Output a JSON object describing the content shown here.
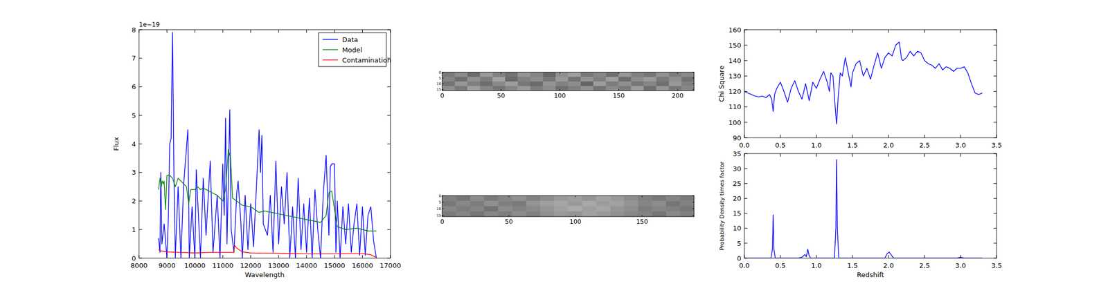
{
  "chart_data": [
    {
      "type": "line",
      "xlabel": "Wavelength",
      "ylabel": "Flux",
      "annotations": [
        "1e−19"
      ],
      "xlim": [
        8000,
        17000
      ],
      "xticks": [
        8000,
        9000,
        10000,
        11000,
        12000,
        13000,
        14000,
        15000,
        16000,
        17000
      ],
      "ylim": [
        0,
        8
      ],
      "yticks": [
        0,
        1,
        2,
        3,
        4,
        5,
        6,
        7,
        8
      ],
      "legend": "upper right",
      "series": [
        {
          "name": "Data",
          "color": "#0000ff",
          "x": [
            8700,
            8750,
            8780,
            8820,
            8900,
            9000,
            9050,
            9100,
            9150,
            9200,
            9250,
            9300,
            9400,
            9500,
            9600,
            9750,
            9800,
            9900,
            10000,
            10050,
            10200,
            10300,
            10400,
            10550,
            10650,
            10800,
            10900,
            11000,
            11050,
            11100,
            11150,
            11250,
            11300,
            11400,
            11500,
            11550,
            11650,
            11700,
            11800,
            11900,
            12000,
            12100,
            12200,
            12300,
            12350,
            12400,
            12450,
            12600,
            12700,
            12800,
            12900,
            13000,
            13100,
            13200,
            13300,
            13400,
            13500,
            13600,
            13700,
            13800,
            13900,
            14000,
            14100,
            14200,
            14300,
            14400,
            14500,
            14600,
            14700,
            14800,
            14850,
            14900,
            15000,
            15050,
            15100,
            15200,
            15300,
            15400,
            15500,
            15600,
            15700,
            15800,
            15900,
            16000,
            16100,
            16200,
            16300,
            16400,
            16500
          ],
          "values": [
            0.7,
            0.2,
            3.0,
            0.5,
            1.2,
            0,
            1.4,
            4.0,
            4.2,
            7.9,
            3.0,
            0,
            2.5,
            0,
            2.6,
            4.5,
            0,
            1.8,
            0,
            3.1,
            0,
            2.8,
            0.8,
            3.4,
            0.2,
            2.2,
            0,
            3.3,
            1.5,
            4.9,
            0.5,
            5.2,
            1.0,
            0.2,
            2.3,
            2.7,
            1.2,
            0,
            2.2,
            0.3,
            1.9,
            0.4,
            2.4,
            4.5,
            3.0,
            4.3,
            1.2,
            0.8,
            2.2,
            0.2,
            3.4,
            0.5,
            2.5,
            1.2,
            3.0,
            0,
            1.8,
            0,
            2.8,
            0.3,
            1.9,
            0.2,
            2.1,
            0,
            2.4,
            1.0,
            0,
            2.3,
            3.6,
            0.8,
            3.2,
            3.3,
            3.3,
            0.2,
            2.0,
            0,
            1.8,
            0.5,
            1.9,
            0.2,
            1.2,
            1.9,
            0.1,
            1.8,
            0.1,
            1.5,
            1.8,
            0.6,
            0
          ]
        },
        {
          "name": "Model",
          "color": "#008000",
          "x": [
            8700,
            8750,
            8800,
            8830,
            8870,
            8900,
            8950,
            9000,
            9100,
            9200,
            9300,
            9400,
            9500,
            9600,
            9700,
            9780,
            9850,
            10000,
            10100,
            10200,
            10300,
            10400,
            10500,
            10600,
            10700,
            10800,
            10900,
            11000,
            11100,
            11200,
            11280,
            11350,
            11500,
            11700,
            12000,
            12300,
            12500,
            13000,
            13500,
            14000,
            14500,
            14700,
            14800,
            14900,
            15050,
            15100,
            15400,
            15800,
            16200,
            16500
          ],
          "values": [
            2.4,
            2.8,
            2.5,
            2.7,
            2.6,
            2.7,
            1.7,
            2.9,
            2.9,
            2.8,
            2.5,
            2.8,
            2.7,
            2.6,
            2.5,
            1.9,
            2.4,
            2.4,
            2.5,
            2.4,
            2.45,
            2.4,
            2.35,
            2.3,
            2.25,
            2.2,
            2.1,
            2.0,
            2.4,
            3.8,
            3.5,
            2.1,
            2.0,
            1.85,
            1.8,
            1.6,
            1.65,
            1.55,
            1.45,
            1.35,
            1.25,
            1.5,
            2.3,
            2.35,
            1.4,
            1.1,
            1.0,
            1.05,
            0.95,
            0.95
          ]
        },
        {
          "name": "Contamination",
          "color": "#ff0000",
          "x": [
            8700,
            8800,
            9000,
            9500,
            10000,
            10500,
            11000,
            11400,
            11420,
            11500,
            11700,
            12000,
            13000,
            14000,
            15000,
            15500,
            16000,
            16300,
            16500
          ],
          "values": [
            0.3,
            0.25,
            0.22,
            0.2,
            0.18,
            0.2,
            0.2,
            0.2,
            0.45,
            0.35,
            0.22,
            0.18,
            0.17,
            0.15,
            0.15,
            0.16,
            0.16,
            0.12,
            0.02
          ]
        }
      ]
    },
    {
      "type": "heatmap",
      "color": "gray",
      "xlim": [
        0,
        214
      ],
      "xticks": [
        0,
        50,
        100,
        150,
        200
      ],
      "ylim": [
        0,
        16
      ],
      "yticks": [
        0,
        5,
        10,
        15
      ],
      "cells": [
        [
          0.48,
          0.55,
          0.42,
          0.6,
          0.5,
          0.45,
          0.58,
          0.52,
          0.4,
          0.56,
          0.62,
          0.47,
          0.53,
          0.44,
          0.59,
          0.51,
          0.46,
          0.57,
          0.49,
          0.54
        ],
        [
          0.52,
          0.44,
          0.57,
          0.49,
          0.63,
          0.41,
          0.5,
          0.55,
          0.47,
          0.6,
          0.45,
          0.58,
          0.5,
          0.62,
          0.43,
          0.55,
          0.6,
          0.48,
          0.56,
          0.45
        ],
        [
          0.45,
          0.59,
          0.5,
          0.43,
          0.54,
          0.61,
          0.47,
          0.42,
          0.58,
          0.51,
          0.55,
          0.4,
          0.61,
          0.49,
          0.56,
          0.47,
          0.52,
          0.44,
          0.6,
          0.5
        ],
        [
          0.56,
          0.48,
          0.62,
          0.53,
          0.46,
          0.52,
          0.6,
          0.49,
          0.55,
          0.44,
          0.5,
          0.57,
          0.45,
          0.54,
          0.48,
          0.61,
          0.43,
          0.58,
          0.47,
          0.53
        ]
      ]
    },
    {
      "type": "heatmap",
      "color": "gray",
      "xlim": [
        0,
        189
      ],
      "xticks": [
        0,
        50,
        100,
        150
      ],
      "ylim": [
        0,
        16
      ],
      "yticks": [
        0,
        5,
        10,
        15
      ],
      "cells": [
        [
          0.5,
          0.46,
          0.55,
          0.48,
          0.52,
          0.57,
          0.5,
          0.55,
          0.6,
          0.62,
          0.58,
          0.64,
          0.6,
          0.55,
          0.5,
          0.47,
          0.52,
          0.48
        ],
        [
          0.47,
          0.53,
          0.49,
          0.56,
          0.5,
          0.48,
          0.58,
          0.62,
          0.65,
          0.6,
          0.66,
          0.61,
          0.63,
          0.58,
          0.52,
          0.55,
          0.46,
          0.51
        ],
        [
          0.53,
          0.49,
          0.52,
          0.45,
          0.55,
          0.51,
          0.54,
          0.59,
          0.63,
          0.67,
          0.62,
          0.65,
          0.59,
          0.56,
          0.49,
          0.52,
          0.5,
          0.47
        ],
        [
          0.48,
          0.52,
          0.46,
          0.53,
          0.49,
          0.55,
          0.5,
          0.56,
          0.6,
          0.58,
          0.63,
          0.6,
          0.57,
          0.53,
          0.51,
          0.46,
          0.54,
          0.5
        ]
      ]
    },
    {
      "type": "line",
      "ylabel": "Chi Square",
      "xlim": [
        0,
        3.5
      ],
      "xticks": [
        {
          "value": 0,
          "label": "0.0"
        },
        0.5,
        {
          "value": 1,
          "label": "1.0"
        },
        1.5,
        {
          "value": 2,
          "label": "2.0"
        },
        2.5,
        {
          "value": 3,
          "label": "3.0"
        },
        3.5
      ],
      "ylim": [
        90,
        160
      ],
      "yticks": [
        90,
        100,
        110,
        120,
        130,
        140,
        150,
        160
      ],
      "x": [
        0,
        0.05,
        0.1,
        0.15,
        0.2,
        0.25,
        0.3,
        0.35,
        0.38,
        0.4,
        0.42,
        0.45,
        0.5,
        0.55,
        0.6,
        0.65,
        0.7,
        0.75,
        0.8,
        0.85,
        0.9,
        0.95,
        1.0,
        1.05,
        1.1,
        1.15,
        1.18,
        1.2,
        1.23,
        1.26,
        1.28,
        1.3,
        1.33,
        1.36,
        1.4,
        1.45,
        1.48,
        1.5,
        1.55,
        1.6,
        1.65,
        1.7,
        1.75,
        1.8,
        1.85,
        1.9,
        1.95,
        2.0,
        2.05,
        2.1,
        2.15,
        2.18,
        2.2,
        2.25,
        2.3,
        2.35,
        2.4,
        2.45,
        2.5,
        2.55,
        2.6,
        2.65,
        2.7,
        2.75,
        2.8,
        2.85,
        2.9,
        2.95,
        3.0,
        3.05,
        3.1,
        3.15,
        3.2,
        3.25,
        3.3
      ],
      "series": [
        {
          "color": "#0000ff",
          "values": [
            120,
            119,
            118,
            117,
            116.5,
            117,
            116,
            118,
            115,
            107,
            118,
            122,
            126,
            120,
            113,
            122,
            127,
            120,
            115,
            125,
            114,
            126,
            122,
            128,
            133,
            126,
            120,
            132,
            130,
            110,
            99,
            115,
            132,
            130,
            142,
            130,
            123,
            132,
            138,
            140,
            130,
            135,
            128,
            137,
            145,
            135,
            142,
            145,
            143,
            150,
            152,
            141,
            140,
            142,
            146,
            143,
            146,
            145,
            140,
            138,
            137,
            135,
            138,
            134,
            136,
            135,
            133,
            135,
            135,
            136,
            132,
            125,
            119,
            118,
            119
          ]
        }
      ]
    },
    {
      "type": "line",
      "xlabel": "Redshift",
      "ylabel": "Probability Density times factor",
      "xlim": [
        0,
        3.5
      ],
      "xticks": [
        {
          "value": 0,
          "label": "0.0"
        },
        0.5,
        {
          "value": 1,
          "label": "1.0"
        },
        1.5,
        {
          "value": 2,
          "label": "2.0"
        },
        2.5,
        {
          "value": 3,
          "label": "3.0"
        },
        3.5
      ],
      "ylim": [
        0,
        35
      ],
      "yticks": [
        0,
        5,
        10,
        15,
        20,
        25,
        30,
        35
      ],
      "x": [
        0,
        0.37,
        0.39,
        0.4,
        0.41,
        0.43,
        0.75,
        0.8,
        0.84,
        0.86,
        0.88,
        0.9,
        0.92,
        1.25,
        1.27,
        1.28,
        1.29,
        1.31,
        1.95,
        1.98,
        2.01,
        2.04,
        2.07,
        2.95,
        3.0,
        3.05,
        3.3
      ],
      "series": [
        {
          "color": "#0000ff",
          "values": [
            0,
            0,
            3,
            14.5,
            3,
            0,
            0,
            0.3,
            1.2,
            0.5,
            3,
            0.8,
            0,
            0,
            10,
            33,
            10,
            0,
            0,
            1.5,
            2,
            1,
            0,
            0,
            0.3,
            0,
            0
          ]
        }
      ]
    }
  ]
}
